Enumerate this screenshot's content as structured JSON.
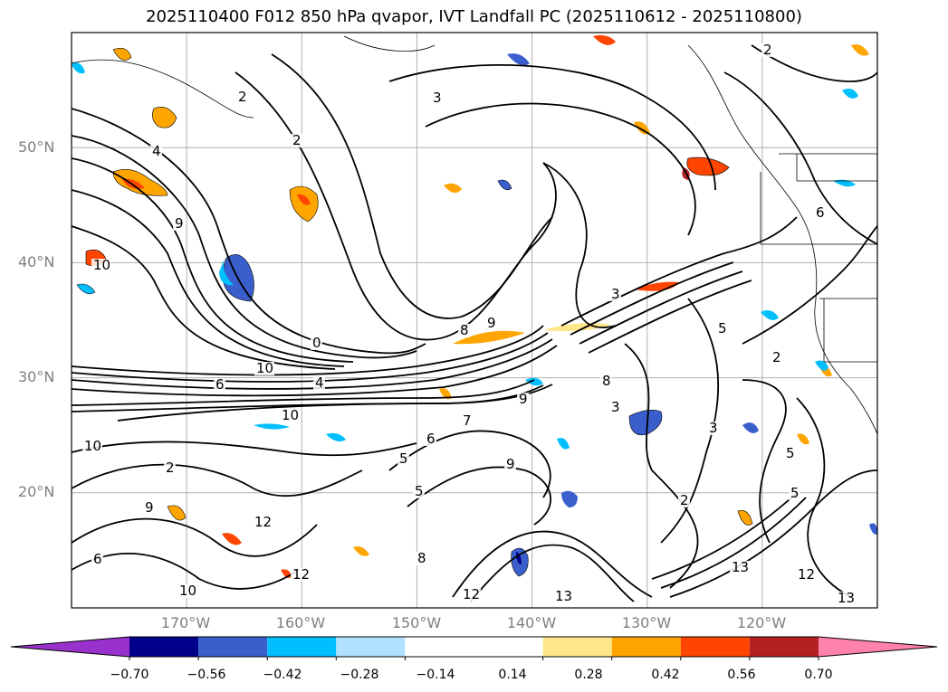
{
  "title": "2025110400 F012 850 hPa qvapor, IVT Landfall PC (2025110612 - 2025110800)",
  "map": {
    "projection": "PlateCarree",
    "lon_range": [
      -180,
      -110
    ],
    "lat_range": [
      10,
      60
    ],
    "lat_ticks": [
      "50°N",
      "40°N",
      "30°N",
      "20°N"
    ],
    "lat_values": [
      50,
      40,
      30,
      20
    ],
    "lon_ticks": [
      "170°W",
      "160°W",
      "150°W",
      "140°W",
      "130°W",
      "120°W"
    ],
    "lon_values": [
      -170,
      -160,
      -150,
      -140,
      -130,
      -120
    ],
    "grid": true,
    "grid_color": "#b0b0b0",
    "contour_color": "#000000",
    "contour_labels": [
      "2",
      "2",
      "3",
      "2",
      "4",
      "9",
      "10",
      "0",
      "10",
      "8",
      "9",
      "10",
      "6",
      "3",
      "9",
      "5",
      "6",
      "5",
      "7",
      "9",
      "8",
      "2",
      "3",
      "6",
      "5",
      "5",
      "2",
      "13",
      "12",
      "13",
      "12",
      "10",
      "12",
      "13",
      "12",
      "8",
      "9",
      "10",
      "6",
      "2",
      "4",
      "3",
      "5"
    ]
  },
  "colorbar": {
    "levels": [
      -0.7,
      -0.56,
      -0.42,
      -0.28,
      -0.14,
      0.14,
      0.28,
      0.42,
      0.56,
      0.7
    ],
    "tick_labels": [
      "−0.70",
      "−0.56",
      "−0.42",
      "−0.28",
      "−0.14",
      "0.14",
      "0.28",
      "0.42",
      "0.56",
      "0.70"
    ],
    "colors": [
      "#9932cc",
      "#00008b",
      "#3a5fcd",
      "#00bfff",
      "#b0e2ff",
      "#ffffff",
      "#ffe78b",
      "#ffa500",
      "#ff4500",
      "#b22222",
      "#ff82ab"
    ],
    "extend": "both"
  }
}
